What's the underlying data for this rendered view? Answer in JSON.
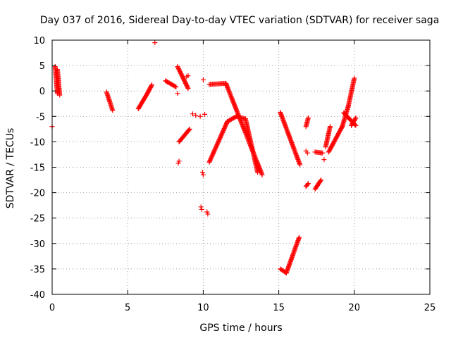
{
  "chart_data": {
    "type": "scatter",
    "title": "Day 037 of 2016, Sidereal Day-to-day VTEC variation (SDTVAR) for receiver saga",
    "xlabel": "GPS time / hours",
    "ylabel": "SDTVAR / TECUs",
    "xlim": [
      0,
      25
    ],
    "ylim": [
      -40,
      10
    ],
    "x_ticks": [
      0,
      5,
      10,
      15,
      20,
      25
    ],
    "y_ticks": [
      -40,
      -35,
      -30,
      -25,
      -20,
      -15,
      -10,
      -5,
      0,
      5,
      10
    ],
    "grid": true,
    "marker": "+",
    "color": "#ff0000",
    "segments": [
      {
        "x0": 0.2,
        "y0": 4.8,
        "x1": 0.35,
        "y1": -0.5
      },
      {
        "x0": 0.35,
        "y0": 4.2,
        "x1": 0.5,
        "y1": -0.8
      },
      {
        "x0": 3.6,
        "y0": -0.2,
        "x1": 4.0,
        "y1": -3.8
      },
      {
        "x0": 5.7,
        "y0": -3.5,
        "x1": 6.3,
        "y1": -0.5
      },
      {
        "x0": 6.3,
        "y0": -0.5,
        "x1": 6.6,
        "y1": 1.2
      },
      {
        "x0": 7.5,
        "y0": 2.0,
        "x1": 8.2,
        "y1": 0.8
      },
      {
        "x0": 8.3,
        "y0": 4.8,
        "x1": 9.0,
        "y1": 0.5
      },
      {
        "x0": 8.4,
        "y0": -10.0,
        "x1": 9.1,
        "y1": -7.5
      },
      {
        "x0": 10.4,
        "y0": 1.3,
        "x1": 11.5,
        "y1": 1.5
      },
      {
        "x0": 11.5,
        "y0": 1.5,
        "x1": 13.9,
        "y1": -16.5
      },
      {
        "x0": 10.4,
        "y0": -14.0,
        "x1": 11.6,
        "y1": -6.0
      },
      {
        "x0": 11.6,
        "y0": -6.0,
        "x1": 12.2,
        "y1": -5.0
      },
      {
        "x0": 12.2,
        "y0": -5.0,
        "x1": 12.8,
        "y1": -5.5
      },
      {
        "x0": 12.8,
        "y0": -5.5,
        "x1": 13.6,
        "y1": -16.0
      },
      {
        "x0": 15.1,
        "y0": -4.2,
        "x1": 16.4,
        "y1": -14.5
      },
      {
        "x0": 15.1,
        "y0": -35.0,
        "x1": 15.5,
        "y1": -35.8
      },
      {
        "x0": 15.5,
        "y0": -35.8,
        "x1": 16.35,
        "y1": -28.8
      },
      {
        "x0": 16.8,
        "y0": -7.0,
        "x1": 16.95,
        "y1": -5.3
      },
      {
        "x0": 16.8,
        "y0": -18.8,
        "x1": 16.95,
        "y1": -18.2
      },
      {
        "x0": 17.4,
        "y0": -12.0,
        "x1": 17.9,
        "y1": -12.2
      },
      {
        "x0": 17.4,
        "y0": -19.3,
        "x1": 17.8,
        "y1": -17.5
      },
      {
        "x0": 18.1,
        "y0": -11.0,
        "x1": 18.4,
        "y1": -7.0
      },
      {
        "x0": 18.3,
        "y0": -12.0,
        "x1": 19.2,
        "y1": -7.0
      },
      {
        "x0": 19.2,
        "y0": -7.0,
        "x1": 19.6,
        "y1": -3.0
      },
      {
        "x0": 19.6,
        "y0": -3.0,
        "x1": 20.0,
        "y1": 2.5
      },
      {
        "x0": 19.3,
        "y0": -4.3,
        "x1": 20.1,
        "y1": -6.8
      },
      {
        "x0": 19.8,
        "y0": -6.8,
        "x1": 20.1,
        "y1": -5.3
      }
    ],
    "points": [
      {
        "x": 0.0,
        "y": -7.0
      },
      {
        "x": 6.8,
        "y": 9.5
      },
      {
        "x": 8.3,
        "y": -0.5
      },
      {
        "x": 8.9,
        "y": 2.8
      },
      {
        "x": 9.0,
        "y": 3.0
      },
      {
        "x": 9.3,
        "y": -4.5
      },
      {
        "x": 9.5,
        "y": -4.8
      },
      {
        "x": 9.8,
        "y": -5.0
      },
      {
        "x": 10.0,
        "y": 2.2
      },
      {
        "x": 10.1,
        "y": -4.6
      },
      {
        "x": 8.4,
        "y": -13.8
      },
      {
        "x": 8.35,
        "y": -14.2
      },
      {
        "x": 9.85,
        "y": -22.8
      },
      {
        "x": 9.9,
        "y": -23.3
      },
      {
        "x": 10.25,
        "y": -23.8
      },
      {
        "x": 10.3,
        "y": -24.2
      },
      {
        "x": 9.95,
        "y": -16.0
      },
      {
        "x": 10.0,
        "y": -16.5
      },
      {
        "x": 16.8,
        "y": -11.8
      },
      {
        "x": 16.9,
        "y": -12.2
      },
      {
        "x": 18.0,
        "y": -13.5
      }
    ]
  }
}
